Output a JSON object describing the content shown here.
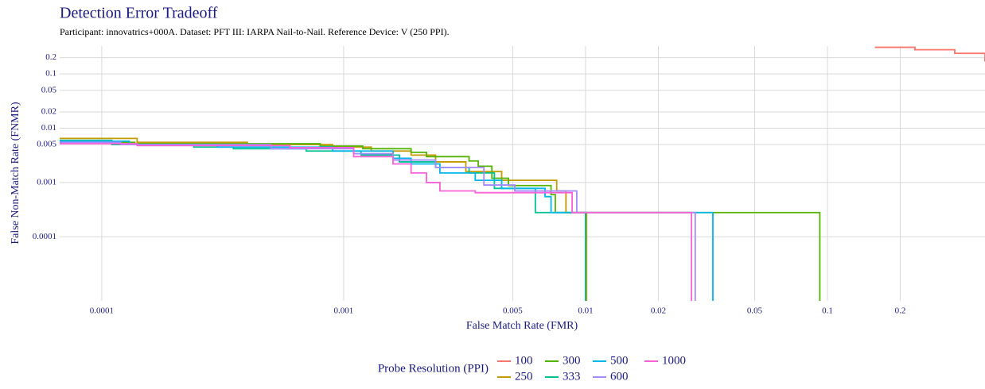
{
  "chart_data": {
    "type": "step",
    "title": "Detection Error Tradeoff",
    "subtitle": "Participant: innovatrics+000A. Dataset: PFT III: IARPA Nail-to-Nail. Reference Device: V (250 PPI).",
    "x_label": "False Match Rate (FMR)",
    "y_label": "False Non-Match Rate (FNMR)",
    "x_scale": "log",
    "y_scale": "log",
    "grid": true,
    "xlim": [
      6.7e-05,
      0.448
    ],
    "ylim": [
      6.6e-06,
      0.327
    ],
    "xticks": [
      0.0001,
      0.001,
      0.005,
      0.01,
      0.02,
      0.05,
      0.1,
      0.2
    ],
    "yticks": [
      0.2,
      0.1,
      0.05,
      0.02,
      0.01,
      0.005,
      0.001,
      0.0001
    ],
    "legend_title": "Probe Resolution (PPI)",
    "legend_position": "bottom",
    "series": [
      {
        "name": "100",
        "color": "#F8766D",
        "x": [
          0.157,
          0.23,
          0.336,
          0.448
        ],
        "values": [
          0.31,
          0.28,
          0.24,
          0.17
        ]
      },
      {
        "name": "250",
        "color": "#C49A00",
        "x": [
          6.7e-05,
          0.00014,
          0.0004,
          0.0009,
          0.0013,
          0.0019,
          0.0024,
          0.0032,
          0.0045,
          0.0076,
          0.0083,
          0.0101,
          0.0101
        ],
        "values": [
          0.0065,
          0.0055,
          0.005,
          0.0045,
          0.0038,
          0.0032,
          0.0024,
          0.0016,
          0.0011,
          0.0007,
          0.00028,
          0.00028,
          1e-06
        ]
      },
      {
        "name": "300",
        "color": "#53B400",
        "x": [
          6.7e-05,
          0.000137,
          0.0008,
          0.0012,
          0.0019,
          0.0022,
          0.0033,
          0.0036,
          0.0041,
          0.0048,
          0.0072,
          0.0075,
          0.093,
          0.093
        ],
        "values": [
          0.0055,
          0.0052,
          0.0047,
          0.0042,
          0.0036,
          0.003,
          0.0025,
          0.002,
          0.0012,
          0.00088,
          0.0006,
          0.00028,
          0.00028,
          1e-06
        ]
      },
      {
        "name": "333",
        "color": "#00C094",
        "x": [
          6.7e-05,
          0.00011,
          0.00024,
          0.00035,
          0.0007,
          0.00118,
          0.0017,
          0.0024,
          0.0033,
          0.0042,
          0.0062,
          0.01,
          0.01
        ],
        "values": [
          0.006,
          0.005,
          0.0045,
          0.0042,
          0.0038,
          0.0032,
          0.0024,
          0.0019,
          0.0015,
          0.00078,
          0.00028,
          0.00028,
          1e-06
        ]
      },
      {
        "name": "500",
        "color": "#00B6EB",
        "x": [
          6.7e-05,
          0.00013,
          0.0003,
          0.0009,
          0.0016,
          0.0019,
          0.0025,
          0.0035,
          0.0045,
          0.0068,
          0.0072,
          0.0336,
          0.0336
        ],
        "values": [
          0.0058,
          0.005,
          0.0045,
          0.0038,
          0.0028,
          0.0022,
          0.0015,
          0.0011,
          0.00078,
          0.00055,
          0.00028,
          0.00028,
          1e-06
        ]
      },
      {
        "name": "600",
        "color": "#A58AFF",
        "x": [
          6.7e-05,
          0.00012,
          0.0005,
          0.0011,
          0.0016,
          0.0024,
          0.0038,
          0.0051,
          0.0092,
          0.0284,
          0.0284
        ],
        "values": [
          0.0055,
          0.005,
          0.0042,
          0.0034,
          0.0026,
          0.0019,
          0.0009,
          0.0007,
          0.00028,
          0.00028,
          1e-06
        ]
      },
      {
        "name": "1000",
        "color": "#FB61D7",
        "x": [
          6.7e-05,
          0.00014,
          0.0006,
          0.0011,
          0.0016,
          0.0019,
          0.0022,
          0.0025,
          0.0035,
          0.0088,
          0.0274,
          0.0274
        ],
        "values": [
          0.0052,
          0.0048,
          0.0044,
          0.003,
          0.0022,
          0.0015,
          0.001,
          0.0007,
          0.00065,
          0.00028,
          0.00028,
          1e-06
        ]
      }
    ]
  }
}
